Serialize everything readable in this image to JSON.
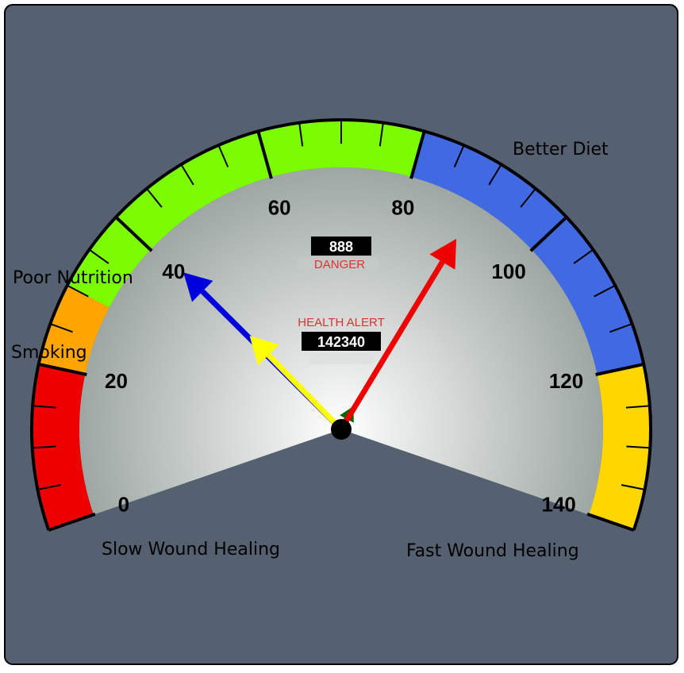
{
  "colors": {
    "frame_bg": "#556070",
    "face_center": "#ffffff",
    "face_edge": "#9ea7a3",
    "hub": "#000000"
  },
  "gauge": {
    "min": 0,
    "max": 140,
    "major_ticks": [
      {
        "value": 0,
        "label": "0"
      },
      {
        "value": 20,
        "label": "20"
      },
      {
        "value": 40,
        "label": "40"
      },
      {
        "value": 60,
        "label": "60"
      },
      {
        "value": 80,
        "label": "80"
      },
      {
        "value": 100,
        "label": "100"
      },
      {
        "value": 120,
        "label": "120"
      },
      {
        "value": 140,
        "label": "140"
      }
    ],
    "minor_step": 5,
    "bands": [
      {
        "from": 0,
        "to": 20,
        "color": "#ee0000"
      },
      {
        "from": 20,
        "to": 30,
        "color": "#ffa500"
      },
      {
        "from": 30,
        "to": 80,
        "color": "#7cfc00"
      },
      {
        "from": 80,
        "to": 120,
        "color": "#4169e1"
      },
      {
        "from": 120,
        "to": 140,
        "color": "#ffd700"
      }
    ]
  },
  "needles": [
    {
      "name": "needle-blue",
      "value": 41,
      "length_fraction": 0.85,
      "color": "#0000dd"
    },
    {
      "name": "needle-yellow",
      "value": 41.5,
      "length_fraction": 0.5,
      "color": "#ffff00"
    },
    {
      "name": "needle-green",
      "value": 88,
      "length_fraction": 0.1,
      "color": "#006400"
    },
    {
      "name": "needle-red",
      "value": 90,
      "length_fraction": 0.85,
      "color": "#ee0000"
    }
  ],
  "annotations": {
    "better_diet": "Better Diet",
    "poor_nutrition": "Poor Nutrition",
    "smoking": "Smoking",
    "slow_wound_healing": "Slow Wound Healing",
    "fast_wound_healing": "Fast Wound Healing"
  },
  "display_top": {
    "value": "888",
    "label": "DANGER",
    "label_color": "#e03030"
  },
  "display_center": {
    "title": "HEALTH ALERT",
    "title_color": "#e03030",
    "value": "142340"
  }
}
